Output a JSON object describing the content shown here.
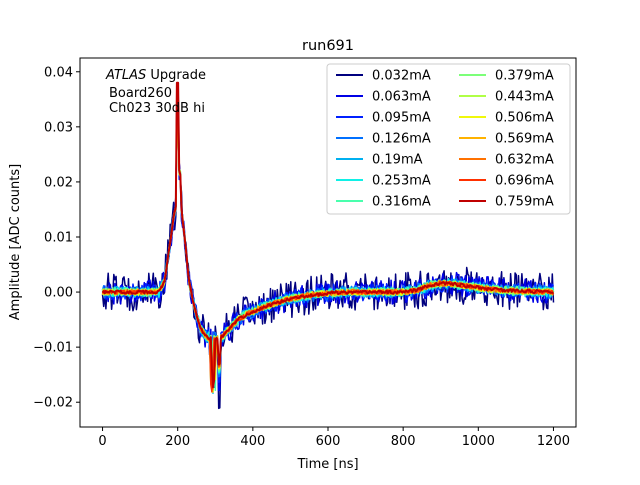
{
  "chart_data": {
    "type": "line",
    "title": "run691",
    "xlabel": "Time [ns]",
    "ylabel": "Amplitude [ADC counts]",
    "xlim": [
      -60,
      1260
    ],
    "ylim": [
      -0.0245,
      0.0425
    ],
    "x_ticks": [
      0,
      200,
      400,
      600,
      800,
      1000,
      1200
    ],
    "x_tick_labels": [
      "0",
      "200",
      "400",
      "600",
      "800",
      "1000",
      "1200"
    ],
    "y_ticks": [
      -0.02,
      -0.01,
      0.0,
      0.01,
      0.02,
      0.03,
      0.04
    ],
    "y_tick_labels": [
      "−0.02",
      "−0.01",
      "0.00",
      "0.01",
      "0.02",
      "0.03",
      "0.04"
    ],
    "grid": false,
    "legend": {
      "placement": "top-right",
      "columns": 2
    },
    "annotations": {
      "experiment": "ATLAS",
      "experiment_suffix": " Upgrade",
      "line2": "Board260",
      "line3": "Ch023 30dB hi"
    },
    "sample_spacing_ns": 3,
    "x_range": [
      0,
      1200
    ],
    "pulse_shape": {
      "x": [
        0,
        150,
        165,
        180,
        190,
        200,
        210,
        220,
        230,
        245,
        260,
        275,
        290,
        305,
        320,
        340,
        360,
        380,
        400,
        430,
        460,
        500,
        550,
        600,
        650,
        700,
        750,
        800,
        840,
        870,
        900,
        930,
        960,
        1000,
        1050,
        1100,
        1150,
        1200
      ],
      "y": [
        0.0,
        0.0,
        0.002,
        0.009,
        0.014,
        0.0165,
        0.015,
        0.009,
        0.002,
        -0.003,
        -0.0065,
        -0.008,
        -0.0085,
        -0.0085,
        -0.008,
        -0.0065,
        -0.005,
        -0.0042,
        -0.0035,
        -0.0027,
        -0.002,
        -0.0012,
        -0.0006,
        -0.0002,
        0.0,
        0.0,
        0.0,
        0.0,
        0.0004,
        0.0012,
        0.0016,
        0.0015,
        0.0012,
        0.0008,
        0.0004,
        0.0002,
        0.0001,
        0.0
      ]
    },
    "series": [
      {
        "name": "0.032mA",
        "color": "#00007f",
        "noise_amplitude": 0.0035,
        "spike_peak": 0.0375
      },
      {
        "name": "0.063mA",
        "color": "#0000e5",
        "noise_amplitude": 0.0022,
        "spike_peak": 0.034
      },
      {
        "name": "0.095mA",
        "color": "#0020ff",
        "noise_amplitude": 0.0016,
        "spike_peak": 0.033
      },
      {
        "name": "0.126mA",
        "color": "#0070ff",
        "noise_amplitude": 0.0012,
        "spike_peak": 0.032
      },
      {
        "name": "0.19mA",
        "color": "#00b0f0",
        "noise_amplitude": 0.001,
        "spike_peak": 0.032
      },
      {
        "name": "0.253mA",
        "color": "#10f0e6",
        "noise_amplitude": 0.0009,
        "spike_peak": 0.031
      },
      {
        "name": "0.316mA",
        "color": "#49ffad",
        "noise_amplitude": 0.0008,
        "spike_peak": 0.031
      },
      {
        "name": "0.379mA",
        "color": "#7cff79",
        "noise_amplitude": 0.0007,
        "spike_peak": 0.031
      },
      {
        "name": "0.443mA",
        "color": "#b0ff46",
        "noise_amplitude": 0.0006,
        "spike_peak": 0.031
      },
      {
        "name": "0.506mA",
        "color": "#f0f80b",
        "noise_amplitude": 0.0006,
        "spike_peak": 0.031
      },
      {
        "name": "0.569mA",
        "color": "#ffb200",
        "noise_amplitude": 0.0005,
        "spike_peak": 0.032
      },
      {
        "name": "0.632mA",
        "color": "#ff7100",
        "noise_amplitude": 0.0005,
        "spike_peak": 0.032
      },
      {
        "name": "0.696mA",
        "color": "#ff3000",
        "noise_amplitude": 0.0004,
        "spike_peak": 0.035
      },
      {
        "name": "0.759mA",
        "color": "#c00000",
        "noise_amplitude": 0.0003,
        "spike_peak": 0.038
      }
    ]
  }
}
